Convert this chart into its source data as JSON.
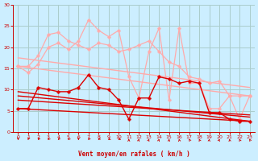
{
  "background_color": "#cceeff",
  "grid_color": "#aacccc",
  "xlabel": "Vent moyen/en rafales ( km/h )",
  "xlim": [
    -0.5,
    23.5
  ],
  "ylim": [
    0,
    30
  ],
  "yticks": [
    0,
    5,
    10,
    15,
    20,
    25,
    30
  ],
  "xticks": [
    0,
    1,
    2,
    3,
    4,
    5,
    6,
    7,
    8,
    9,
    10,
    11,
    12,
    13,
    14,
    15,
    16,
    17,
    18,
    19,
    20,
    21,
    22,
    23
  ],
  "lines": [
    {
      "x": [
        0,
        1,
        2,
        3,
        4,
        5,
        6,
        7,
        8,
        9,
        10,
        11,
        12,
        13,
        14,
        15,
        16,
        17,
        18,
        19,
        20,
        21,
        22,
        23
      ],
      "y": [
        15.5,
        15.5,
        18.0,
        23.0,
        23.5,
        21.5,
        20.5,
        19.5,
        21.0,
        20.5,
        19.0,
        19.5,
        20.5,
        21.5,
        19.0,
        16.5,
        15.5,
        13.0,
        12.5,
        11.5,
        12.0,
        8.5,
        8.5,
        8.5
      ],
      "color": "#ffaaaa",
      "marker": "P",
      "linewidth": 0.9,
      "markersize": 2.5
    },
    {
      "x": [
        0,
        1,
        2,
        3,
        4,
        5,
        6,
        7,
        8,
        9,
        10,
        11,
        12,
        13,
        14,
        15,
        16,
        17,
        18,
        19,
        20,
        21,
        22,
        23
      ],
      "y": [
        15.5,
        14.0,
        16.0,
        20.0,
        21.0,
        19.5,
        21.5,
        26.5,
        24.0,
        22.5,
        24.0,
        13.0,
        8.0,
        19.0,
        24.5,
        7.5,
        24.5,
        11.5,
        11.5,
        5.5,
        5.5,
        8.5,
        3.0,
        8.5
      ],
      "color": "#ffaaaa",
      "marker": "P",
      "linewidth": 0.9,
      "markersize": 2.5
    },
    {
      "x": [
        0,
        23
      ],
      "y": [
        15.5,
        8.5
      ],
      "color": "#ffaaaa",
      "marker": "none",
      "linewidth": 1.0,
      "markersize": 0
    },
    {
      "x": [
        0,
        23
      ],
      "y": [
        17.5,
        10.5
      ],
      "color": "#ffaaaa",
      "marker": "none",
      "linewidth": 1.0,
      "markersize": 0
    },
    {
      "x": [
        0,
        1,
        2,
        3,
        4,
        5,
        6,
        7,
        8,
        9,
        10,
        11,
        12,
        13,
        14,
        15,
        16,
        17,
        18,
        19,
        20,
        21,
        22,
        23
      ],
      "y": [
        5.5,
        5.5,
        10.5,
        10.0,
        9.5,
        9.5,
        10.5,
        13.5,
        10.5,
        10.0,
        7.5,
        3.0,
        8.0,
        8.0,
        13.0,
        12.5,
        11.5,
        12.0,
        11.5,
        4.5,
        4.5,
        3.0,
        2.5,
        2.5
      ],
      "color": "#dd0000",
      "marker": "P",
      "linewidth": 1.0,
      "markersize": 2.5
    },
    {
      "x": [
        0,
        23
      ],
      "y": [
        9.5,
        2.5
      ],
      "color": "#dd0000",
      "marker": "none",
      "linewidth": 1.0,
      "markersize": 0
    },
    {
      "x": [
        0,
        23
      ],
      "y": [
        8.5,
        3.5
      ],
      "color": "#dd0000",
      "marker": "none",
      "linewidth": 1.0,
      "markersize": 0
    },
    {
      "x": [
        0,
        23
      ],
      "y": [
        7.5,
        4.0
      ],
      "color": "#dd0000",
      "marker": "none",
      "linewidth": 1.0,
      "markersize": 0
    },
    {
      "x": [
        0,
        23
      ],
      "y": [
        5.5,
        2.5
      ],
      "color": "#dd0000",
      "marker": "none",
      "linewidth": 1.0,
      "markersize": 0
    }
  ],
  "arrow_angles": [
    180,
    200,
    220,
    225,
    220,
    225,
    180,
    220,
    230,
    240,
    240,
    0,
    15,
    20,
    15,
    5,
    350,
    330,
    340,
    10,
    20,
    350,
    340,
    330
  ]
}
